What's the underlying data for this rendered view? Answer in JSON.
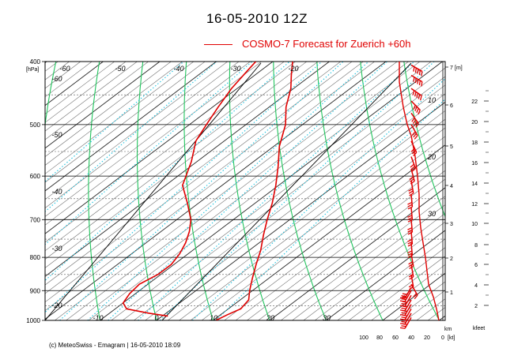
{
  "chart_data": {
    "type": "line",
    "title": "16-05-2010  12Z",
    "series": [
      {
        "name": "COSMO-7 Forecast for Zuerich   +60h",
        "color": "#e00000"
      }
    ],
    "y_left": {
      "unit": "[hPa]",
      "ticks": [
        400,
        500,
        600,
        700,
        800,
        900,
        1000
      ],
      "ylim": [
        1000,
        400
      ]
    },
    "y_right_m": {
      "unit": "[m]",
      "ticks": [
        1,
        2,
        3,
        4,
        5,
        6,
        7
      ]
    },
    "y_right_kfeet": {
      "unit": "kfeet",
      "ticks": [
        2,
        4,
        6,
        8,
        10,
        12,
        14,
        16,
        18,
        20,
        22
      ]
    },
    "isotherm_labels": [
      -60,
      -50,
      -40,
      -30,
      -20,
      -10,
      0,
      10,
      20,
      30
    ],
    "adiabat_labels": [
      -60,
      -50,
      -40,
      -30,
      -20,
      10,
      20,
      30
    ],
    "wind_axis": {
      "unit": "[kt]",
      "ticks": [
        100,
        80,
        60,
        40,
        20,
        0
      ]
    },
    "km_label": "km",
    "temperature": [
      [
        1000,
        10.5
      ],
      [
        980,
        11.2
      ],
      [
        960,
        12.2
      ],
      [
        930,
        11.5
      ],
      [
        900,
        9.5
      ],
      [
        860,
        7
      ],
      [
        820,
        4.5
      ],
      [
        780,
        2
      ],
      [
        740,
        -1
      ],
      [
        700,
        -4
      ],
      [
        660,
        -7
      ],
      [
        620,
        -10.5
      ],
      [
        580,
        -14.5
      ],
      [
        540,
        -19
      ],
      [
        500,
        -23
      ],
      [
        470,
        -27
      ],
      [
        440,
        -30.5
      ],
      [
        420,
        -33.5
      ],
      [
        400,
        -36.5
      ]
    ],
    "dewpoint": [
      [
        985,
        1
      ],
      [
        975,
        -3
      ],
      [
        960,
        -8
      ],
      [
        940,
        -10
      ],
      [
        910,
        -11
      ],
      [
        880,
        -11.5
      ],
      [
        850,
        -10.5
      ],
      [
        820,
        -10.5
      ],
      [
        790,
        -11.5
      ],
      [
        760,
        -13
      ],
      [
        730,
        -15
      ],
      [
        700,
        -17.5
      ],
      [
        660,
        -22
      ],
      [
        620,
        -27
      ],
      [
        570,
        -31
      ],
      [
        530,
        -35
      ],
      [
        500,
        -37
      ],
      [
        470,
        -39
      ],
      [
        440,
        -41
      ],
      [
        410,
        -42.5
      ],
      [
        400,
        -43
      ]
    ],
    "wind_profile": [
      [
        1000,
        5
      ],
      [
        960,
        8
      ],
      [
        920,
        12
      ],
      [
        880,
        18
      ],
      [
        840,
        20
      ],
      [
        800,
        22
      ],
      [
        760,
        25
      ],
      [
        720,
        28
      ],
      [
        680,
        30
      ],
      [
        640,
        30
      ],
      [
        600,
        32
      ],
      [
        560,
        35
      ],
      [
        520,
        40
      ],
      [
        500,
        45
      ],
      [
        470,
        50
      ],
      [
        430,
        55
      ],
      [
        400,
        55
      ]
    ],
    "wind_barbs": [
      {
        "p": 990,
        "speed": 25,
        "dir": 30
      },
      {
        "p": 975,
        "speed": 25,
        "dir": 30
      },
      {
        "p": 960,
        "speed": 25,
        "dir": 30
      },
      {
        "p": 945,
        "speed": 25,
        "dir": 30
      },
      {
        "p": 930,
        "speed": 25,
        "dir": 30
      },
      {
        "p": 915,
        "speed": 25,
        "dir": 30
      },
      {
        "p": 900,
        "speed": 25,
        "dir": 30
      },
      {
        "p": 890,
        "speed": 25,
        "dir": 30
      },
      {
        "p": 880,
        "speed": 20,
        "dir": 330
      },
      {
        "p": 850,
        "speed": 20,
        "dir": 350
      },
      {
        "p": 820,
        "speed": 20,
        "dir": 350
      },
      {
        "p": 790,
        "speed": 25,
        "dir": 350
      },
      {
        "p": 760,
        "speed": 25,
        "dir": 355
      },
      {
        "p": 730,
        "speed": 25,
        "dir": 355
      },
      {
        "p": 700,
        "speed": 25,
        "dir": 355
      },
      {
        "p": 670,
        "speed": 25,
        "dir": 355
      },
      {
        "p": 640,
        "speed": 25,
        "dir": 355
      },
      {
        "p": 610,
        "speed": 25,
        "dir": 350
      },
      {
        "p": 585,
        "speed": 25,
        "dir": 345
      },
      {
        "p": 560,
        "speed": 30,
        "dir": 340
      },
      {
        "p": 530,
        "speed": 30,
        "dir": 335
      },
      {
        "p": 500,
        "speed": 30,
        "dir": 330
      },
      {
        "p": 480,
        "speed": 35,
        "dir": 325
      },
      {
        "p": 460,
        "speed": 40,
        "dir": 315
      },
      {
        "p": 440,
        "speed": 45,
        "dir": 305
      },
      {
        "p": 420,
        "speed": 50,
        "dir": 300
      },
      {
        "p": 405,
        "speed": 50,
        "dir": 300
      }
    ],
    "credit": "(c) MeteoSwiss - Emagram  |  16-05-2010  18:09"
  }
}
